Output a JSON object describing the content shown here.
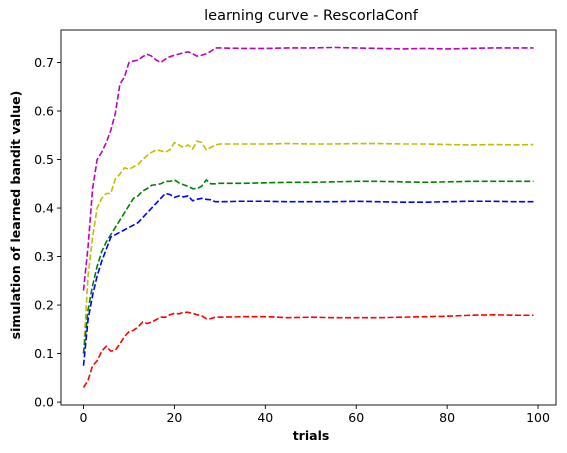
{
  "chart_data": {
    "type": "line",
    "title": "learning curve - RescorlaConf",
    "xlabel": "trials",
    "ylabel": "simulation of learned bandit value)",
    "xlim": [
      -4.95,
      103.95
    ],
    "ylim": [
      -0.006,
      0.767
    ],
    "xticks": [
      0,
      20,
      40,
      60,
      80,
      100
    ],
    "yticks": [
      0.0,
      0.1,
      0.2,
      0.3,
      0.4,
      0.5,
      0.6,
      0.7
    ],
    "xtick_labels": [
      "0",
      "20",
      "40",
      "60",
      "80",
      "100"
    ],
    "ytick_labels": [
      "0.0",
      "0.1",
      "0.2",
      "0.3",
      "0.4",
      "0.5",
      "0.6",
      "0.7"
    ],
    "grid": false,
    "legend": "none",
    "series": [
      {
        "color": "#bf00bf",
        "points": [
          [
            0,
            0.23
          ],
          [
            1,
            0.32
          ],
          [
            2,
            0.44
          ],
          [
            3,
            0.5
          ],
          [
            4,
            0.515
          ],
          [
            5,
            0.535
          ],
          [
            6,
            0.56
          ],
          [
            7,
            0.595
          ],
          [
            8,
            0.655
          ],
          [
            9,
            0.67
          ],
          [
            10,
            0.7
          ],
          [
            11,
            0.703
          ],
          [
            12,
            0.705
          ],
          [
            13,
            0.712
          ],
          [
            14,
            0.717
          ],
          [
            15,
            0.713
          ],
          [
            16,
            0.705
          ],
          [
            17,
            0.7
          ],
          [
            18,
            0.707
          ],
          [
            19,
            0.712
          ],
          [
            20,
            0.715
          ],
          [
            22,
            0.72
          ],
          [
            23,
            0.722
          ],
          [
            24,
            0.718
          ],
          [
            25,
            0.713
          ],
          [
            26,
            0.715
          ],
          [
            27,
            0.718
          ],
          [
            28,
            0.723
          ],
          [
            29,
            0.73
          ],
          [
            30,
            0.73
          ],
          [
            35,
            0.729
          ],
          [
            40,
            0.729
          ],
          [
            45,
            0.73
          ],
          [
            50,
            0.73
          ],
          [
            55,
            0.731
          ],
          [
            60,
            0.73
          ],
          [
            65,
            0.729
          ],
          [
            70,
            0.728
          ],
          [
            75,
            0.729
          ],
          [
            80,
            0.728
          ],
          [
            85,
            0.729
          ],
          [
            90,
            0.73
          ],
          [
            95,
            0.73
          ],
          [
            99,
            0.73
          ]
        ]
      },
      {
        "color": "#bfbf00",
        "points": [
          [
            0,
            0.1
          ],
          [
            1,
            0.26
          ],
          [
            2,
            0.34
          ],
          [
            3,
            0.4
          ],
          [
            4,
            0.42
          ],
          [
            5,
            0.43
          ],
          [
            6,
            0.43
          ],
          [
            7,
            0.46
          ],
          [
            8,
            0.47
          ],
          [
            9,
            0.483
          ],
          [
            10,
            0.48
          ],
          [
            11,
            0.485
          ],
          [
            12,
            0.49
          ],
          [
            13,
            0.5
          ],
          [
            14,
            0.508
          ],
          [
            15,
            0.515
          ],
          [
            16,
            0.52
          ],
          [
            17,
            0.518
          ],
          [
            18,
            0.515
          ],
          [
            19,
            0.52
          ],
          [
            20,
            0.535
          ],
          [
            21,
            0.53
          ],
          [
            22,
            0.525
          ],
          [
            23,
            0.53
          ],
          [
            24,
            0.522
          ],
          [
            25,
            0.538
          ],
          [
            26,
            0.535
          ],
          [
            27,
            0.52
          ],
          [
            28,
            0.525
          ],
          [
            29,
            0.53
          ],
          [
            30,
            0.532
          ],
          [
            35,
            0.532
          ],
          [
            40,
            0.532
          ],
          [
            45,
            0.533
          ],
          [
            50,
            0.532
          ],
          [
            55,
            0.532
          ],
          [
            60,
            0.533
          ],
          [
            65,
            0.533
          ],
          [
            70,
            0.532
          ],
          [
            75,
            0.532
          ],
          [
            80,
            0.531
          ],
          [
            85,
            0.53
          ],
          [
            90,
            0.531
          ],
          [
            95,
            0.53
          ],
          [
            99,
            0.531
          ]
        ]
      },
      {
        "color": "#008000",
        "points": [
          [
            0,
            0.1
          ],
          [
            1,
            0.19
          ],
          [
            2,
            0.24
          ],
          [
            3,
            0.28
          ],
          [
            4,
            0.31
          ],
          [
            5,
            0.33
          ],
          [
            6,
            0.345
          ],
          [
            7,
            0.36
          ],
          [
            8,
            0.375
          ],
          [
            9,
            0.39
          ],
          [
            10,
            0.405
          ],
          [
            11,
            0.42
          ],
          [
            12,
            0.425
          ],
          [
            13,
            0.435
          ],
          [
            14,
            0.44
          ],
          [
            15,
            0.447
          ],
          [
            16,
            0.448
          ],
          [
            17,
            0.45
          ],
          [
            18,
            0.455
          ],
          [
            19,
            0.455
          ],
          [
            20,
            0.458
          ],
          [
            21,
            0.452
          ],
          [
            22,
            0.448
          ],
          [
            23,
            0.445
          ],
          [
            24,
            0.44
          ],
          [
            25,
            0.44
          ],
          [
            26,
            0.445
          ],
          [
            27,
            0.458
          ],
          [
            28,
            0.45
          ],
          [
            29,
            0.45
          ],
          [
            30,
            0.451
          ],
          [
            35,
            0.451
          ],
          [
            40,
            0.452
          ],
          [
            45,
            0.453
          ],
          [
            50,
            0.453
          ],
          [
            55,
            0.454
          ],
          [
            60,
            0.455
          ],
          [
            65,
            0.455
          ],
          [
            70,
            0.454
          ],
          [
            75,
            0.453
          ],
          [
            80,
            0.454
          ],
          [
            85,
            0.455
          ],
          [
            90,
            0.455
          ],
          [
            95,
            0.455
          ],
          [
            99,
            0.455
          ]
        ]
      },
      {
        "color": "#0000ff",
        "points": [
          [
            0,
            0.075
          ],
          [
            1,
            0.17
          ],
          [
            2,
            0.22
          ],
          [
            3,
            0.26
          ],
          [
            4,
            0.29
          ],
          [
            5,
            0.315
          ],
          [
            6,
            0.34
          ],
          [
            7,
            0.345
          ],
          [
            8,
            0.35
          ],
          [
            9,
            0.355
          ],
          [
            10,
            0.36
          ],
          [
            11,
            0.365
          ],
          [
            12,
            0.37
          ],
          [
            13,
            0.38
          ],
          [
            14,
            0.39
          ],
          [
            15,
            0.4
          ],
          [
            16,
            0.41
          ],
          [
            17,
            0.42
          ],
          [
            18,
            0.43
          ],
          [
            19,
            0.428
          ],
          [
            20,
            0.422
          ],
          [
            21,
            0.425
          ],
          [
            22,
            0.423
          ],
          [
            23,
            0.425
          ],
          [
            24,
            0.415
          ],
          [
            25,
            0.418
          ],
          [
            26,
            0.42
          ],
          [
            27,
            0.418
          ],
          [
            28,
            0.417
          ],
          [
            29,
            0.413
          ],
          [
            30,
            0.413
          ],
          [
            35,
            0.414
          ],
          [
            40,
            0.414
          ],
          [
            45,
            0.413
          ],
          [
            50,
            0.413
          ],
          [
            55,
            0.413
          ],
          [
            60,
            0.414
          ],
          [
            65,
            0.413
          ],
          [
            70,
            0.412
          ],
          [
            75,
            0.412
          ],
          [
            80,
            0.413
          ],
          [
            85,
            0.414
          ],
          [
            90,
            0.414
          ],
          [
            95,
            0.413
          ],
          [
            99,
            0.413
          ]
        ]
      },
      {
        "color": "#ff0000",
        "points": [
          [
            0,
            0.03
          ],
          [
            1,
            0.045
          ],
          [
            2,
            0.075
          ],
          [
            3,
            0.085
          ],
          [
            4,
            0.105
          ],
          [
            5,
            0.115
          ],
          [
            6,
            0.105
          ],
          [
            7,
            0.107
          ],
          [
            8,
            0.12
          ],
          [
            9,
            0.135
          ],
          [
            10,
            0.145
          ],
          [
            11,
            0.148
          ],
          [
            12,
            0.155
          ],
          [
            13,
            0.165
          ],
          [
            14,
            0.162
          ],
          [
            15,
            0.165
          ],
          [
            16,
            0.17
          ],
          [
            17,
            0.175
          ],
          [
            18,
            0.175
          ],
          [
            19,
            0.18
          ],
          [
            20,
            0.183
          ],
          [
            21,
            0.182
          ],
          [
            22,
            0.185
          ],
          [
            23,
            0.185
          ],
          [
            24,
            0.183
          ],
          [
            25,
            0.18
          ],
          [
            26,
            0.178
          ],
          [
            27,
            0.172
          ],
          [
            28,
            0.172
          ],
          [
            29,
            0.175
          ],
          [
            30,
            0.175
          ],
          [
            35,
            0.176
          ],
          [
            40,
            0.176
          ],
          [
            45,
            0.174
          ],
          [
            50,
            0.175
          ],
          [
            55,
            0.174
          ],
          [
            60,
            0.174
          ],
          [
            65,
            0.174
          ],
          [
            70,
            0.175
          ],
          [
            75,
            0.176
          ],
          [
            80,
            0.177
          ],
          [
            85,
            0.179
          ],
          [
            90,
            0.18
          ],
          [
            95,
            0.179
          ],
          [
            99,
            0.179
          ]
        ]
      }
    ]
  }
}
